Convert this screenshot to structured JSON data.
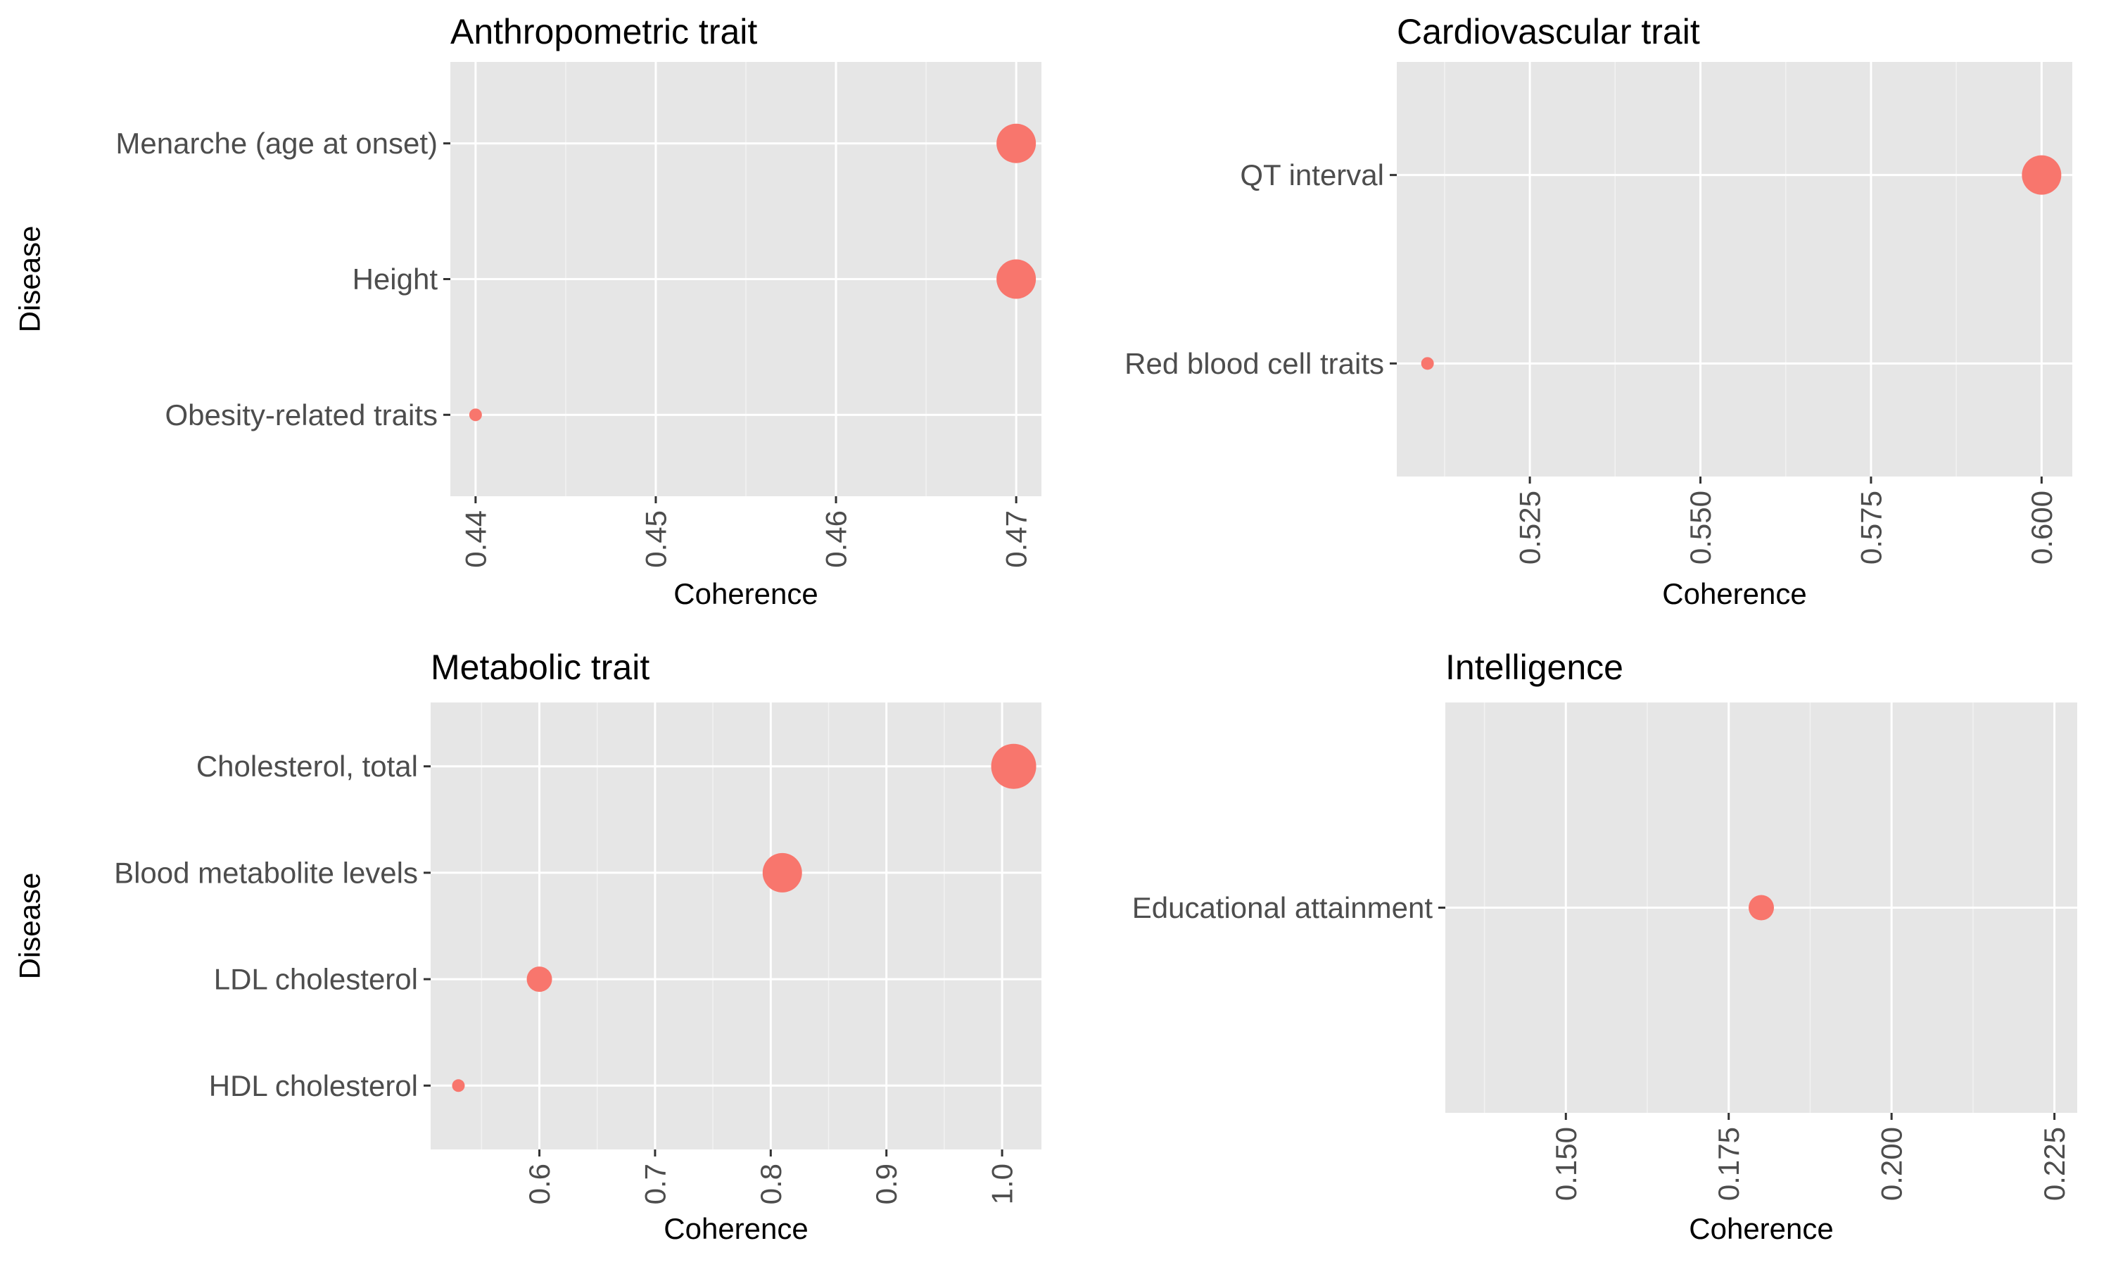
{
  "chart_data": [
    {
      "type": "scatter",
      "title": "Anthropometric trait",
      "xlabel": "Coherence",
      "ylabel": "Disease",
      "categories": [
        "Menarche (age at onset)",
        "Height",
        "Obesity-related traits"
      ],
      "x": [
        0.47,
        0.47,
        0.44
      ],
      "size": [
        3,
        3,
        1
      ],
      "xlim": [
        0.4386,
        0.4714
      ],
      "xticks": [
        "0.44",
        "0.45",
        "0.46",
        "0.47"
      ],
      "xtick_values": [
        0.44,
        0.45,
        0.46,
        0.47
      ],
      "color": "#f8766d",
      "grid": true
    },
    {
      "type": "scatter",
      "title": "Cardiovascular trait",
      "xlabel": "Coherence",
      "ylabel": "",
      "categories": [
        "QT interval",
        "Red blood cell traits"
      ],
      "x": [
        0.6,
        0.51
      ],
      "size": [
        3,
        1
      ],
      "xlim": [
        0.5055,
        0.6045
      ],
      "xticks": [
        "0.525",
        "0.550",
        "0.575",
        "0.600"
      ],
      "xtick_values": [
        0.525,
        0.55,
        0.575,
        0.6
      ],
      "color": "#f8766d",
      "grid": true
    },
    {
      "type": "scatter",
      "title": "Metabolic trait",
      "xlabel": "Coherence",
      "ylabel": "Disease",
      "categories": [
        "Cholesterol, total",
        "Blood metabolite levels",
        "LDL cholesterol",
        "HDL cholesterol"
      ],
      "x": [
        1.01,
        0.81,
        0.6,
        0.53
      ],
      "size": [
        4,
        3,
        2,
        1
      ],
      "xlim": [
        0.506,
        1.034
      ],
      "xticks": [
        "0.6",
        "0.7",
        "0.8",
        "0.9",
        "1.0"
      ],
      "xtick_values": [
        0.6,
        0.7,
        0.8,
        0.9,
        1.0
      ],
      "color": "#f8766d",
      "grid": true
    },
    {
      "type": "scatter",
      "title": "Intelligence",
      "xlabel": "Coherence",
      "ylabel": "",
      "categories": [
        "Educational attainment"
      ],
      "x": [
        0.18
      ],
      "size": [
        2
      ],
      "xlim": [
        0.1315,
        0.2285
      ],
      "xticks": [
        "0.150",
        "0.175",
        "0.200",
        "0.225"
      ],
      "xtick_values": [
        0.15,
        0.175,
        0.2,
        0.225
      ],
      "color": "#f8766d",
      "grid": true
    }
  ]
}
